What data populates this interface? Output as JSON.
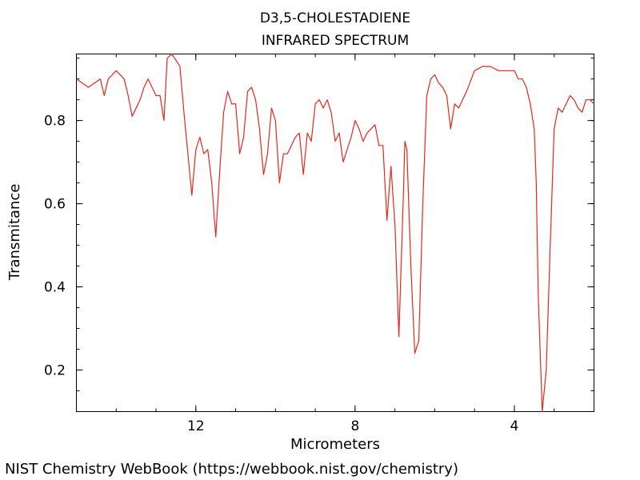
{
  "chart_data": {
    "type": "line",
    "title": [
      "D3,5-CHOLESTADIENE",
      "INFRARED SPECTRUM"
    ],
    "xlabel": "Micrometers",
    "ylabel": "Transmitance",
    "xlim": [
      15,
      2
    ],
    "ylim": [
      0.1,
      0.96
    ],
    "x_ticks": [
      12,
      8,
      4
    ],
    "y_ticks": [
      0.2,
      0.4,
      0.6,
      0.8
    ],
    "grid": false,
    "legend": "none",
    "line_color": "#e8261c",
    "series": [
      {
        "x": [
          15.0,
          14.7,
          14.4,
          14.3,
          14.2,
          14.1,
          14.0,
          13.8,
          13.7,
          13.6,
          13.4,
          13.3,
          13.2,
          13.0,
          12.9,
          12.8,
          12.72,
          12.6,
          12.4,
          12.3,
          12.2,
          12.1,
          12.0,
          11.9,
          11.8,
          11.7,
          11.6,
          11.5,
          11.4,
          11.3,
          11.2,
          11.1,
          11.0,
          10.9,
          10.8,
          10.7,
          10.6,
          10.5,
          10.4,
          10.3,
          10.2,
          10.1,
          10.0,
          9.9,
          9.8,
          9.7,
          9.6,
          9.5,
          9.4,
          9.3,
          9.2,
          9.1,
          9.0,
          8.9,
          8.8,
          8.7,
          8.6,
          8.5,
          8.4,
          8.3,
          8.2,
          8.1,
          8.0,
          7.9,
          7.8,
          7.7,
          7.6,
          7.5,
          7.4,
          7.3,
          7.2,
          7.1,
          7.0,
          6.9,
          6.8,
          6.75,
          6.7,
          6.6,
          6.5,
          6.4,
          6.3,
          6.2,
          6.1,
          6.0,
          5.9,
          5.8,
          5.7,
          5.6,
          5.5,
          5.4,
          5.2,
          5.0,
          4.8,
          4.6,
          4.4,
          4.2,
          4.0,
          3.9,
          3.8,
          3.7,
          3.6,
          3.5,
          3.45,
          3.4,
          3.3,
          3.2,
          3.1,
          3.0,
          2.9,
          2.8,
          2.7,
          2.6,
          2.5,
          2.4,
          2.3,
          2.2,
          2.1,
          2.0
        ],
        "y": [
          0.9,
          0.88,
          0.9,
          0.86,
          0.9,
          0.91,
          0.92,
          0.9,
          0.86,
          0.81,
          0.85,
          0.88,
          0.9,
          0.86,
          0.86,
          0.8,
          0.95,
          0.96,
          0.93,
          0.82,
          0.72,
          0.62,
          0.73,
          0.76,
          0.72,
          0.73,
          0.65,
          0.52,
          0.68,
          0.82,
          0.87,
          0.84,
          0.84,
          0.72,
          0.76,
          0.87,
          0.88,
          0.85,
          0.78,
          0.67,
          0.72,
          0.83,
          0.8,
          0.65,
          0.72,
          0.72,
          0.74,
          0.76,
          0.77,
          0.67,
          0.77,
          0.75,
          0.84,
          0.85,
          0.83,
          0.85,
          0.82,
          0.75,
          0.77,
          0.7,
          0.73,
          0.76,
          0.8,
          0.78,
          0.75,
          0.77,
          0.78,
          0.79,
          0.74,
          0.74,
          0.56,
          0.69,
          0.55,
          0.28,
          0.58,
          0.75,
          0.73,
          0.45,
          0.24,
          0.27,
          0.6,
          0.86,
          0.9,
          0.91,
          0.89,
          0.88,
          0.86,
          0.78,
          0.84,
          0.83,
          0.87,
          0.92,
          0.93,
          0.93,
          0.92,
          0.92,
          0.92,
          0.9,
          0.9,
          0.88,
          0.84,
          0.78,
          0.65,
          0.38,
          0.1,
          0.2,
          0.5,
          0.78,
          0.83,
          0.82,
          0.84,
          0.86,
          0.85,
          0.83,
          0.82,
          0.85,
          0.85,
          0.84
        ]
      }
    ]
  },
  "footer": {
    "credit": "NIST Chemistry WebBook (https://webbook.nist.gov/chemistry)"
  }
}
